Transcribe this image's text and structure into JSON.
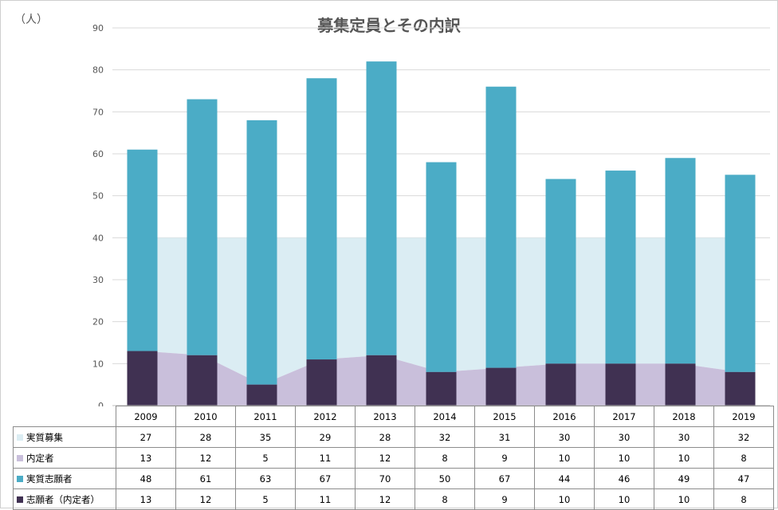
{
  "unit_label": "（人）",
  "chart_data": {
    "type": "bar",
    "title": "募集定員とその内訳",
    "ylim": [
      0,
      90
    ],
    "yticks": [
      0,
      10,
      20,
      30,
      40,
      50,
      60,
      70,
      80,
      90
    ],
    "grid": true,
    "categories": [
      "2009",
      "2010",
      "2011",
      "2012",
      "2013",
      "2014",
      "2015",
      "2016",
      "2017",
      "2018",
      "2019"
    ],
    "series": [
      {
        "name": "実質募集",
        "kind": "area",
        "color": "#dbedf3",
        "values": [
          27,
          28,
          35,
          29,
          28,
          32,
          31,
          30,
          30,
          30,
          32
        ]
      },
      {
        "name": "内定者",
        "kind": "area",
        "color": "#c9bfdb",
        "values": [
          13,
          12,
          5,
          11,
          12,
          8,
          9,
          10,
          10,
          10,
          8
        ]
      },
      {
        "name": "実質志願者",
        "kind": "bar",
        "color": "#4bacc6",
        "values": [
          48,
          61,
          63,
          67,
          70,
          50,
          67,
          44,
          46,
          49,
          47
        ]
      },
      {
        "name": "志願者（内定者）",
        "kind": "bar",
        "color": "#403152",
        "values": [
          13,
          12,
          5,
          11,
          12,
          8,
          9,
          10,
          10,
          10,
          8
        ]
      }
    ]
  }
}
